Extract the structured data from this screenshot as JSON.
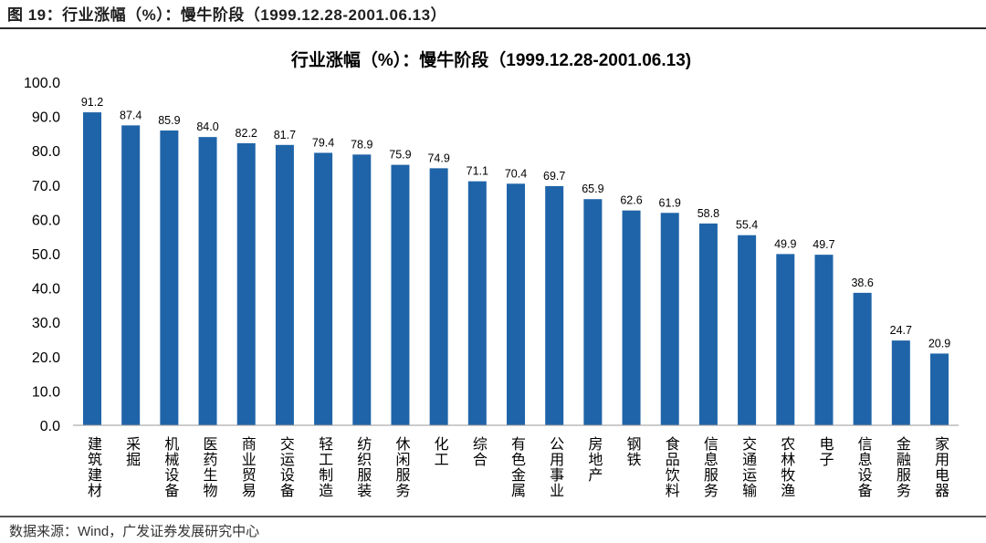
{
  "caption": "图 19：行业涨幅（%）：慢牛阶段（1999.12.28-2001.06.13）",
  "source": "数据来源：Wind，广发证券发展研究中心",
  "chart_data": {
    "type": "bar",
    "title": "行业涨幅（%）：慢牛阶段（1999.12.28-2001.06.13)",
    "xlabel": "",
    "ylabel": "",
    "ylim": [
      0,
      100
    ],
    "yticks": [
      "0.0",
      "10.0",
      "20.0",
      "30.0",
      "40.0",
      "50.0",
      "60.0",
      "70.0",
      "80.0",
      "90.0",
      "100.0"
    ],
    "grid": false,
    "bar_color": "#1f64a8",
    "categories": [
      "建筑建材",
      "采掘",
      "机械设备",
      "医药生物",
      "商业贸易",
      "交运设备",
      "轻工制造",
      "纺织服装",
      "休闲服务",
      "化工",
      "综合",
      "有色金属",
      "公用事业",
      "房地产",
      "钢铁",
      "食品饮料",
      "信息服务",
      "交通运输",
      "农林牧渔",
      "电子",
      "信息设备",
      "金融服务",
      "家用电器"
    ],
    "values": [
      91.2,
      87.4,
      85.9,
      84.0,
      82.2,
      81.7,
      79.4,
      78.9,
      75.9,
      74.9,
      71.1,
      70.4,
      69.7,
      65.9,
      62.6,
      61.9,
      58.8,
      55.4,
      49.9,
      49.7,
      38.6,
      24.7,
      20.9
    ],
    "data_labels": [
      "91.2",
      "87.4",
      "85.9",
      "84.0",
      "82.2",
      "81.7",
      "79.4",
      "78.9",
      "75.9",
      "74.9",
      "71.1",
      "70.4",
      "69.7",
      "65.9",
      "62.6",
      "61.9",
      "58.8",
      "55.4",
      "49.9",
      "49.7",
      "38.6",
      "24.7",
      "20.9"
    ]
  }
}
